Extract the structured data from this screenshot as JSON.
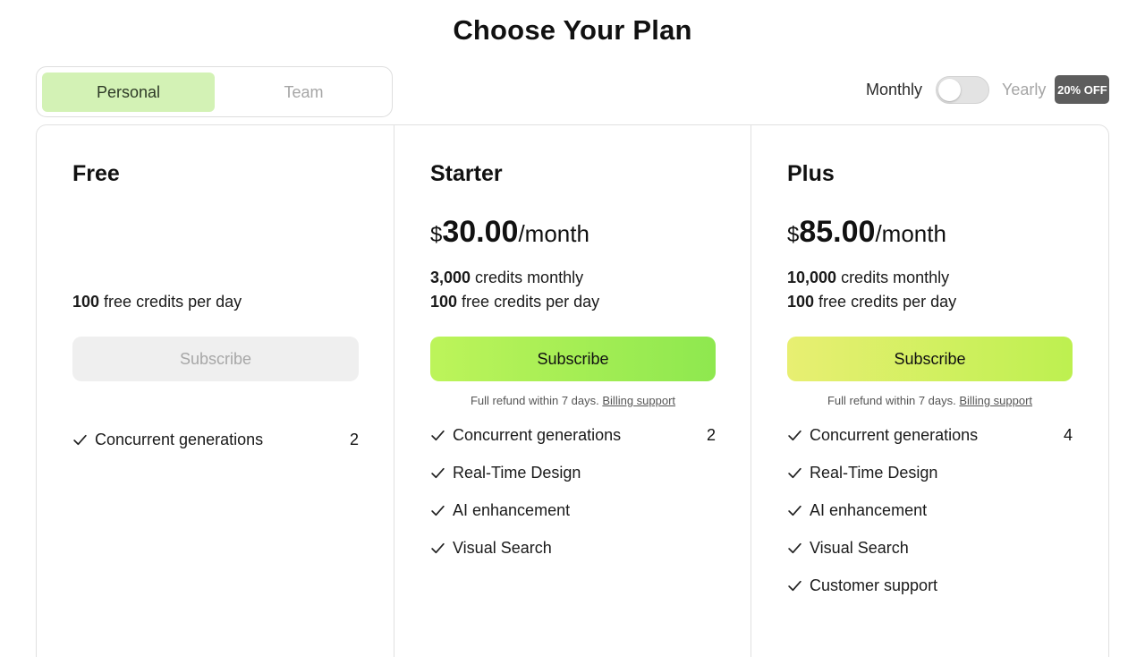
{
  "page": {
    "title": "Choose Your Plan"
  },
  "segment": {
    "personal": "Personal",
    "team": "Team",
    "selected": "Personal"
  },
  "billing": {
    "monthly": "Monthly",
    "yearly": "Yearly",
    "badge": "20% OFF",
    "yearly_enabled": false
  },
  "colors": {
    "segment_active": "#d3f2b5",
    "starter_button_gradient": [
      "#bdf45a",
      "#8ee84f"
    ],
    "plus_button_gradient": [
      "#e8ef72",
      "#bdf050"
    ],
    "badge": "#5d5d5d"
  },
  "plans": [
    {
      "name": "Free",
      "credit_lines": [
        {
          "num": "100",
          "text": " free credits per day"
        }
      ],
      "subscribe": "Subscribe",
      "features": [
        {
          "label": "Concurrent generations",
          "value": "2"
        }
      ]
    },
    {
      "name": "Starter",
      "price": {
        "currency": "$",
        "amount": "30.00",
        "period": "/month"
      },
      "credit_lines": [
        {
          "num": "3,000",
          "text": " credits monthly"
        },
        {
          "num": "100",
          "text": " free credits per day"
        }
      ],
      "subscribe": "Subscribe",
      "refund": {
        "text": "Full refund within 7 days.",
        "link": "Billing support"
      },
      "features": [
        {
          "label": "Concurrent generations",
          "value": "2"
        },
        {
          "label": "Real-Time Design"
        },
        {
          "label": "AI enhancement"
        },
        {
          "label": "Visual Search"
        }
      ]
    },
    {
      "name": "Plus",
      "price": {
        "currency": "$",
        "amount": "85.00",
        "period": "/month"
      },
      "credit_lines": [
        {
          "num": "10,000",
          "text": " credits monthly"
        },
        {
          "num": "100",
          "text": " free credits per day"
        }
      ],
      "subscribe": "Subscribe",
      "refund": {
        "text": "Full refund within 7 days.",
        "link": "Billing support"
      },
      "features": [
        {
          "label": "Concurrent generations",
          "value": "4"
        },
        {
          "label": "Real-Time Design"
        },
        {
          "label": "AI enhancement"
        },
        {
          "label": "Visual Search"
        },
        {
          "label": "Customer support"
        }
      ]
    }
  ]
}
